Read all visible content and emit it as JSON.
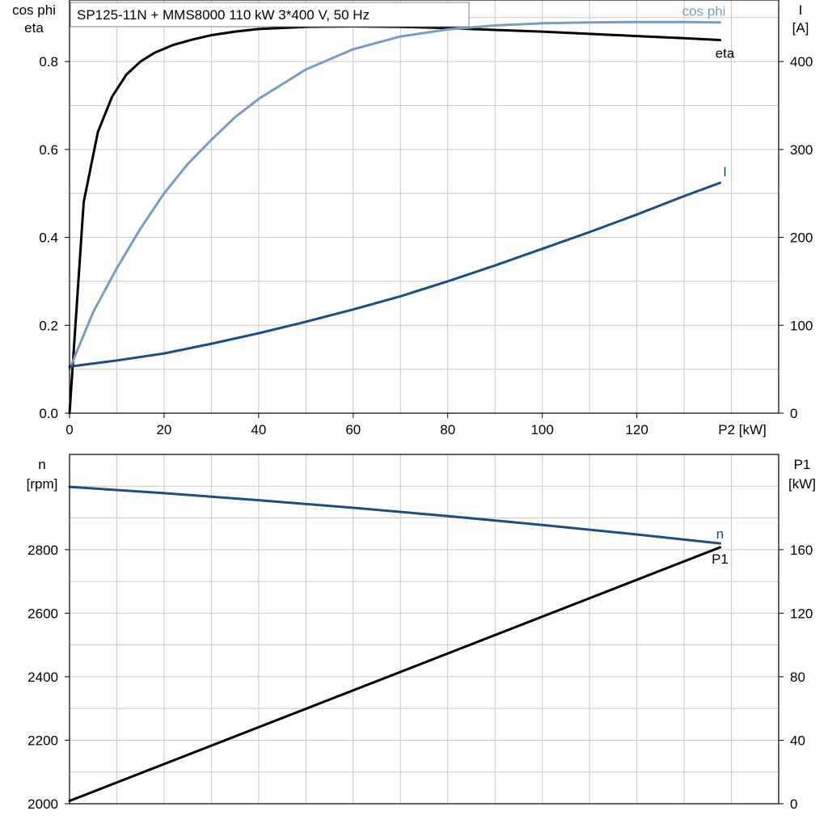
{
  "chart_data": [
    {
      "type": "line",
      "title": "SP125-11N + MMS8000   110 kW   3*400 V, 50 Hz",
      "x_axis": {
        "label": "P2 [kW]",
        "ticks": [
          0,
          20,
          40,
          60,
          80,
          100,
          120
        ],
        "range": [
          0,
          150
        ]
      },
      "y_left": {
        "label_lines": [
          "cos phi",
          "eta"
        ],
        "ticks": [
          0.0,
          0.2,
          0.4,
          0.6,
          0.8
        ],
        "tick_labels": [
          "0.0",
          "0.2",
          "0.4",
          "0.6",
          "0.8"
        ],
        "range": [
          0,
          0.94
        ]
      },
      "y_right": {
        "label_lines": [
          "I",
          "[A]"
        ],
        "ticks": [
          0,
          100,
          200,
          300,
          400
        ],
        "range": [
          0,
          470
        ]
      },
      "grid": true,
      "series": [
        {
          "name": "eta",
          "axis": "left",
          "color": "#000000",
          "label_color": "#000000",
          "x": [
            0,
            3,
            6,
            9,
            12,
            15,
            18,
            22,
            26,
            30,
            35,
            40,
            50,
            60,
            70,
            80,
            90,
            100,
            110,
            120,
            130,
            137.6
          ],
          "y": [
            0.0,
            0.48,
            0.64,
            0.72,
            0.77,
            0.8,
            0.82,
            0.838,
            0.85,
            0.86,
            0.868,
            0.874,
            0.879,
            0.88,
            0.879,
            0.876,
            0.872,
            0.868,
            0.863,
            0.858,
            0.853,
            0.849
          ]
        },
        {
          "name": "cos phi",
          "axis": "left",
          "color": "#7a9cc0",
          "label_color": "#7a9cc0",
          "x": [
            0,
            5,
            10,
            15,
            20,
            25,
            30,
            35,
            40,
            50,
            60,
            70,
            80,
            90,
            100,
            110,
            120,
            130,
            137.6
          ],
          "y": [
            0.1,
            0.23,
            0.33,
            0.42,
            0.5,
            0.567,
            0.622,
            0.673,
            0.715,
            0.782,
            0.828,
            0.857,
            0.873,
            0.882,
            0.887,
            0.889,
            0.89,
            0.89,
            0.889
          ]
        },
        {
          "name": "I",
          "axis": "right",
          "color": "#1c4e80",
          "label_color": "#1c4e80",
          "x": [
            0,
            10,
            20,
            30,
            40,
            50,
            60,
            70,
            80,
            90,
            100,
            110,
            120,
            130,
            137.6
          ],
          "y": [
            53,
            60,
            68,
            79,
            91,
            104,
            118,
            133,
            150,
            168,
            187,
            206,
            226,
            247,
            262
          ]
        }
      ]
    },
    {
      "type": "line",
      "title": "",
      "x_axis": {
        "label": "",
        "range": [
          0,
          150
        ]
      },
      "y_left": {
        "label_lines": [
          "n",
          "[rpm]"
        ],
        "ticks": [
          2000,
          2200,
          2400,
          2600,
          2800
        ],
        "range": [
          2000,
          3100
        ]
      },
      "y_right": {
        "label_lines": [
          "P1",
          "[kW]"
        ],
        "ticks": [
          0,
          40,
          80,
          120,
          160
        ],
        "range": [
          0,
          220
        ]
      },
      "grid": true,
      "series": [
        {
          "name": "n",
          "axis": "left",
          "color": "#1c4e80",
          "label_color": "#1c4e80",
          "x": [
            0,
            20,
            40,
            60,
            80,
            100,
            120,
            137.6
          ],
          "y": [
            2998,
            2978,
            2956,
            2932,
            2906,
            2878,
            2848,
            2820
          ]
        },
        {
          "name": "P1",
          "axis": "right",
          "color": "#000000",
          "label_color": "#000000",
          "x": [
            0,
            137.6
          ],
          "y": [
            1.8,
            161.5
          ]
        }
      ]
    }
  ]
}
